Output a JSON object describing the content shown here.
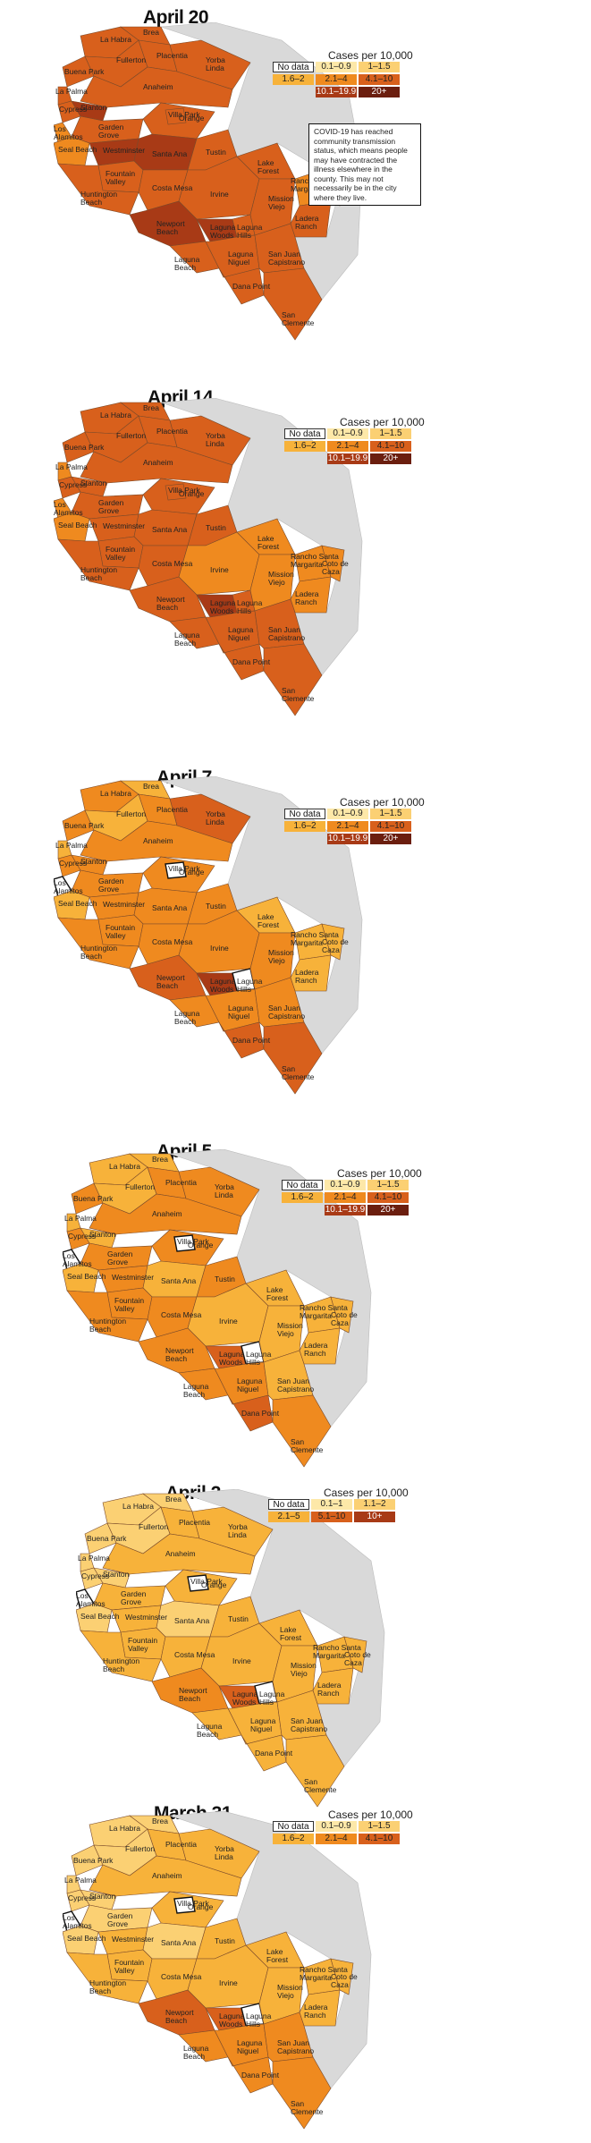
{
  "legend_header": "Cases per 10,000",
  "no_data_label": "No data",
  "note": "COVID-19 has reached community transmission status, which means people may have contracted the illness elsewhere in the county. This may not necessarily be in the city where they live.",
  "places": {
    "la_habra": "La Habra",
    "brea": "Brea",
    "buena_park": "Buena Park",
    "fullerton": "Fullerton",
    "placentia": "Placentia",
    "yorba_linda": "Yorba Linda",
    "la_palma": "La Palma",
    "cypress": "Cypress",
    "anaheim": "Anaheim",
    "los_alamitos": "Los Alamitos",
    "stanton": "Stanton",
    "garden_grove": "Garden Grove",
    "orange": "Orange",
    "villa_park": "Villa Park",
    "seal_beach": "Seal Beach",
    "westminster": "Westminster",
    "santa_ana": "Santa Ana",
    "fountain_valley": "Fountain Valley",
    "tustin": "Tustin",
    "huntington_beach": "Huntington Beach",
    "costa_mesa": "Costa Mesa",
    "irvine": "Irvine",
    "newport_beach": "Newport Beach",
    "lake_forest": "Lake Forest",
    "laguna_woods": "Laguna Woods",
    "laguna_hills": "Laguna Hills",
    "mission_viejo": "Mission Viejo",
    "rancho_santa_margarita": "Rancho Santa Margarita",
    "coto_de_caza": "Coto de Caza",
    "ladera_ranch": "Ladera Ranch",
    "laguna_beach": "Laguna Beach",
    "laguna_niguel": "Laguna Niguel",
    "dana_point": "Dana Point",
    "san_juan_capistrano": "San Juan Capistrano",
    "san_clemente": "San Clemente"
  },
  "colors": {
    "no_data": "#ffffff",
    "c1": "#fde8a8",
    "c2": "#fbd073",
    "c3": "#f7b23a",
    "c4": "#ef8a1f",
    "c5": "#d8601c",
    "c6": "#a83a16",
    "c7": "#6b1e0f",
    "terrain": "#d9d9d9"
  },
  "panels": [
    {
      "title": "April 20",
      "legend": [
        [
          "0.1–0.9",
          "1–1.5"
        ],
        [
          "1.6–2",
          "2.1–4",
          "4.1–10"
        ],
        [
          "10.1–19.9",
          "20+"
        ]
      ],
      "show_note": true,
      "levels": {
        "la_habra": 5,
        "brea": 5,
        "buena_park": 5,
        "fullerton": 5,
        "placentia": 5,
        "yorba_linda": 5,
        "la_palma": 5,
        "cypress": 5,
        "anaheim": 5,
        "los_alamitos": 4,
        "stanton": 6,
        "garden_grove": 5,
        "orange": 5,
        "villa_park": 5,
        "seal_beach": 4,
        "westminster": 6,
        "santa_ana": 6,
        "fountain_valley": 5,
        "tustin": 5,
        "huntington_beach": 5,
        "costa_mesa": 5,
        "irvine": 5,
        "newport_beach": 6,
        "lake_forest": 5,
        "laguna_woods": 6,
        "laguna_hills": 5,
        "mission_viejo": 5,
        "rancho_santa_margarita": 4,
        "coto_de_caza": 4,
        "ladera_ranch": 5,
        "laguna_beach": 5,
        "laguna_niguel": 5,
        "dana_point": 5,
        "san_juan_capistrano": 5,
        "san_clemente": 5
      }
    },
    {
      "title": "April 14",
      "legend": [
        [
          "0.1–0.9",
          "1–1.5"
        ],
        [
          "1.6–2",
          "2.1–4",
          "4.1–10"
        ],
        [
          "10.1–19.9",
          "20+"
        ]
      ],
      "show_note": false,
      "levels": {
        "la_habra": 5,
        "brea": 5,
        "buena_park": 5,
        "fullerton": 5,
        "placentia": 5,
        "yorba_linda": 5,
        "la_palma": 4,
        "cypress": 5,
        "anaheim": 5,
        "los_alamitos": 4,
        "stanton": 5,
        "garden_grove": 5,
        "orange": 5,
        "villa_park": 5,
        "seal_beach": 4,
        "westminster": 5,
        "santa_ana": 5,
        "fountain_valley": 5,
        "tustin": 5,
        "huntington_beach": 5,
        "costa_mesa": 5,
        "irvine": 4,
        "newport_beach": 5,
        "lake_forest": 4,
        "laguna_woods": 6,
        "laguna_hills": 5,
        "mission_viejo": 4,
        "rancho_santa_margarita": 4,
        "coto_de_caza": 4,
        "ladera_ranch": 4,
        "laguna_beach": 5,
        "laguna_niguel": 5,
        "dana_point": 5,
        "san_juan_capistrano": 5,
        "san_clemente": 5
      }
    },
    {
      "title": "April 7",
      "legend": [
        [
          "0.1–0.9",
          "1–1.5"
        ],
        [
          "1.6–2",
          "2.1–4",
          "4.1–10"
        ],
        [
          "10.1–19.9",
          "20+"
        ]
      ],
      "show_note": false,
      "levels": {
        "la_habra": 4,
        "brea": 3,
        "buena_park": 4,
        "fullerton": 3,
        "placentia": 4,
        "yorba_linda": 5,
        "la_palma": 3,
        "cypress": 4,
        "anaheim": 4,
        "los_alamitos": 0,
        "stanton": 4,
        "garden_grove": 4,
        "orange": 4,
        "villa_park": 0,
        "seal_beach": 3,
        "westminster": 4,
        "santa_ana": 4,
        "fountain_valley": 4,
        "tustin": 4,
        "huntington_beach": 4,
        "costa_mesa": 4,
        "irvine": 4,
        "newport_beach": 5,
        "lake_forest": 3,
        "laguna_woods": 6,
        "laguna_hills": 0,
        "mission_viejo": 4,
        "rancho_santa_margarita": 3,
        "coto_de_caza": 3,
        "ladera_ranch": 3,
        "laguna_beach": 4,
        "laguna_niguel": 4,
        "dana_point": 5,
        "san_juan_capistrano": 4,
        "san_clemente": 5
      }
    },
    {
      "title": "April 5",
      "legend": [
        [
          "0.1–0.9",
          "1–1.5"
        ],
        [
          "1.6–2",
          "2.1–4",
          "4.1–10"
        ],
        [
          "10.1–19.9",
          "20+"
        ]
      ],
      "show_note": false,
      "levels": {
        "la_habra": 3,
        "brea": 3,
        "buena_park": 4,
        "fullerton": 3,
        "placentia": 4,
        "yorba_linda": 4,
        "la_palma": 3,
        "cypress": 4,
        "anaheim": 4,
        "los_alamitos": 0,
        "stanton": 3,
        "garden_grove": 4,
        "orange": 4,
        "villa_park": 0,
        "seal_beach": 3,
        "westminster": 4,
        "santa_ana": 3,
        "fountain_valley": 4,
        "tustin": 4,
        "huntington_beach": 4,
        "costa_mesa": 4,
        "irvine": 3,
        "newport_beach": 4,
        "lake_forest": 3,
        "laguna_woods": 5,
        "laguna_hills": 0,
        "mission_viejo": 3,
        "rancho_santa_margarita": 3,
        "coto_de_caza": 3,
        "ladera_ranch": 3,
        "laguna_beach": 4,
        "laguna_niguel": 4,
        "dana_point": 5,
        "san_juan_capistrano": 3,
        "san_clemente": 4
      }
    },
    {
      "title": "April 2",
      "legend": [
        [
          "0.1–1",
          "1.1–2"
        ],
        [
          "2.1–5",
          "5.1–10",
          "10+"
        ]
      ],
      "show_note": false,
      "levels": {
        "la_habra": 2,
        "brea": 2,
        "buena_park": 2,
        "fullerton": 2,
        "placentia": 3,
        "yorba_linda": 3,
        "la_palma": 2,
        "cypress": 2,
        "anaheim": 3,
        "los_alamitos": 0,
        "stanton": 2,
        "garden_grove": 3,
        "orange": 3,
        "villa_park": 0,
        "seal_beach": 2,
        "westminster": 3,
        "santa_ana": 2,
        "fountain_valley": 3,
        "tustin": 3,
        "huntington_beach": 3,
        "costa_mesa": 3,
        "irvine": 3,
        "newport_beach": 4,
        "lake_forest": 3,
        "laguna_woods": 5,
        "laguna_hills": 0,
        "mission_viejo": 3,
        "rancho_santa_margarita": 3,
        "coto_de_caza": 3,
        "ladera_ranch": 3,
        "laguna_beach": 3,
        "laguna_niguel": 3,
        "dana_point": 3,
        "san_juan_capistrano": 3,
        "san_clemente": 3
      }
    },
    {
      "title": "March 31",
      "legend": [
        [
          "0.1–0.9",
          "1–1.5"
        ],
        [
          "1.6–2",
          "2.1–4",
          "4.1–10"
        ]
      ],
      "show_note": false,
      "levels": {
        "la_habra": 2,
        "brea": 2,
        "buena_park": 2,
        "fullerton": 2,
        "placentia": 3,
        "yorba_linda": 3,
        "la_palma": 2,
        "cypress": 2,
        "anaheim": 3,
        "los_alamitos": 0,
        "stanton": 2,
        "garden_grove": 2,
        "orange": 3,
        "villa_park": 0,
        "seal_beach": 2,
        "westminster": 3,
        "santa_ana": 2,
        "fountain_valley": 3,
        "tustin": 3,
        "huntington_beach": 3,
        "costa_mesa": 3,
        "irvine": 3,
        "newport_beach": 5,
        "lake_forest": 3,
        "laguna_woods": 5,
        "laguna_hills": 0,
        "mission_viejo": 3,
        "rancho_santa_margarita": 3,
        "coto_de_caza": 3,
        "ladera_ranch": 3,
        "laguna_beach": 4,
        "laguna_niguel": 4,
        "dana_point": 4,
        "san_juan_capistrano": 4,
        "san_clemente": 4
      }
    }
  ]
}
